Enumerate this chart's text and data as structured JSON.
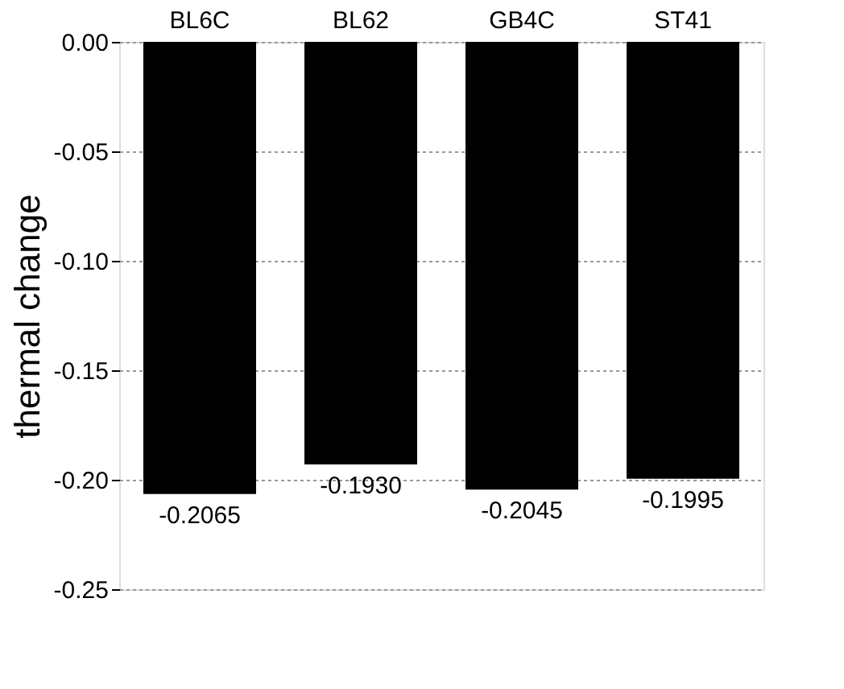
{
  "chart_data": {
    "type": "bar",
    "ylabel": "thermal change",
    "categories": [
      "BL6C",
      "BL62",
      "GB4C",
      "ST41"
    ],
    "values": [
      -0.2065,
      -0.193,
      -0.2045,
      -0.1995
    ],
    "color": "#000000",
    "value_labels": [
      "-0.2065",
      "-0.1930",
      "-0.2045",
      "-0.1995"
    ],
    "ylim": [
      -0.25,
      0.0
    ],
    "yticks": [
      {
        "value": 0.0,
        "label": "0.00"
      },
      {
        "value": -0.05,
        "label": "-0.05"
      },
      {
        "value": -0.1,
        "label": "-0.10"
      },
      {
        "value": -0.15,
        "label": "-0.15"
      },
      {
        "value": -0.2,
        "label": "-0.20"
      },
      {
        "value": -0.25,
        "label": "-0.25"
      }
    ],
    "grid": "y"
  }
}
